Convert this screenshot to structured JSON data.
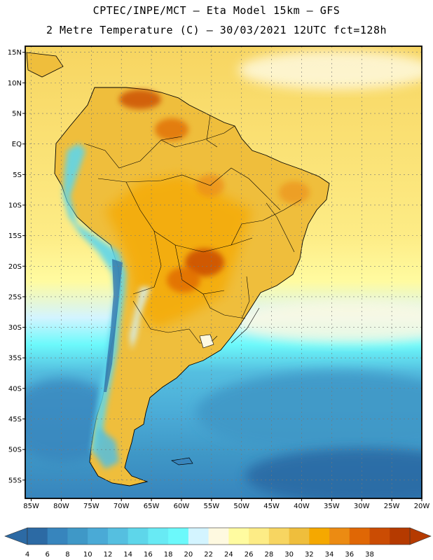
{
  "header": {
    "line1": "CPTEC/INPE/MCT –  Eta Model 15km – GFS",
    "line2": "2 Metre Temperature (C) – 30/03/2021 12UTC fct=128h"
  },
  "map": {
    "lat_labels": [
      "15N",
      "10N",
      "5N",
      "EQ",
      "5S",
      "10S",
      "15S",
      "20S",
      "25S",
      "30S",
      "35S",
      "40S",
      "45S",
      "50S",
      "55S"
    ],
    "lat_values": [
      15,
      10,
      5,
      0,
      -5,
      -10,
      -15,
      -20,
      -25,
      -30,
      -35,
      -40,
      -45,
      -50,
      -55
    ],
    "lon_labels": [
      "85W",
      "80W",
      "75W",
      "70W",
      "65W",
      "60W",
      "55W",
      "50W",
      "45W",
      "40W",
      "35W",
      "30W",
      "25W",
      "20W"
    ],
    "lon_values": [
      -85,
      -80,
      -75,
      -70,
      -65,
      -60,
      -55,
      -50,
      -45,
      -40,
      -35,
      -30,
      -25,
      -20
    ],
    "lon_range": [
      -86,
      -20
    ],
    "lat_range": [
      -58,
      16
    ],
    "grid": true
  },
  "colorbar": {
    "labels": [
      "4",
      "6",
      "8",
      "10",
      "12",
      "14",
      "16",
      "18",
      "20",
      "22",
      "24",
      "26",
      "28",
      "30",
      "32",
      "34",
      "36",
      "38"
    ],
    "colors": [
      "#2c6aa4",
      "#3785bd",
      "#3f98c7",
      "#4aaad6",
      "#55bfe0",
      "#5ed6ea",
      "#68eaf4",
      "#6cf9fb",
      "#d3f4ff",
      "#fef9e0",
      "#fffba0",
      "#fdec86",
      "#f7d561",
      "#efbe3c",
      "#f5a800",
      "#ec8b12",
      "#e06705",
      "#cb4c03",
      "#b53a00"
    ],
    "under_color": "#2c6aa4",
    "over_color": "#b53a00"
  },
  "chart_data": {
    "type": "heatmap",
    "title": "2 Metre Temperature (C) – 30/03/2021 12UTC fct=128h",
    "source": "CPTEC/INPE/MCT –  Eta Model 15km – GFS",
    "variable": "2 Metre Temperature",
    "units": "C",
    "x_axis": "longitude",
    "y_axis": "latitude",
    "xlim": [
      -86,
      -20
    ],
    "ylim": [
      -58,
      16
    ],
    "color_levels": [
      4,
      6,
      8,
      10,
      12,
      14,
      16,
      18,
      20,
      22,
      24,
      26,
      28,
      30,
      32,
      34,
      36,
      38
    ]
  }
}
